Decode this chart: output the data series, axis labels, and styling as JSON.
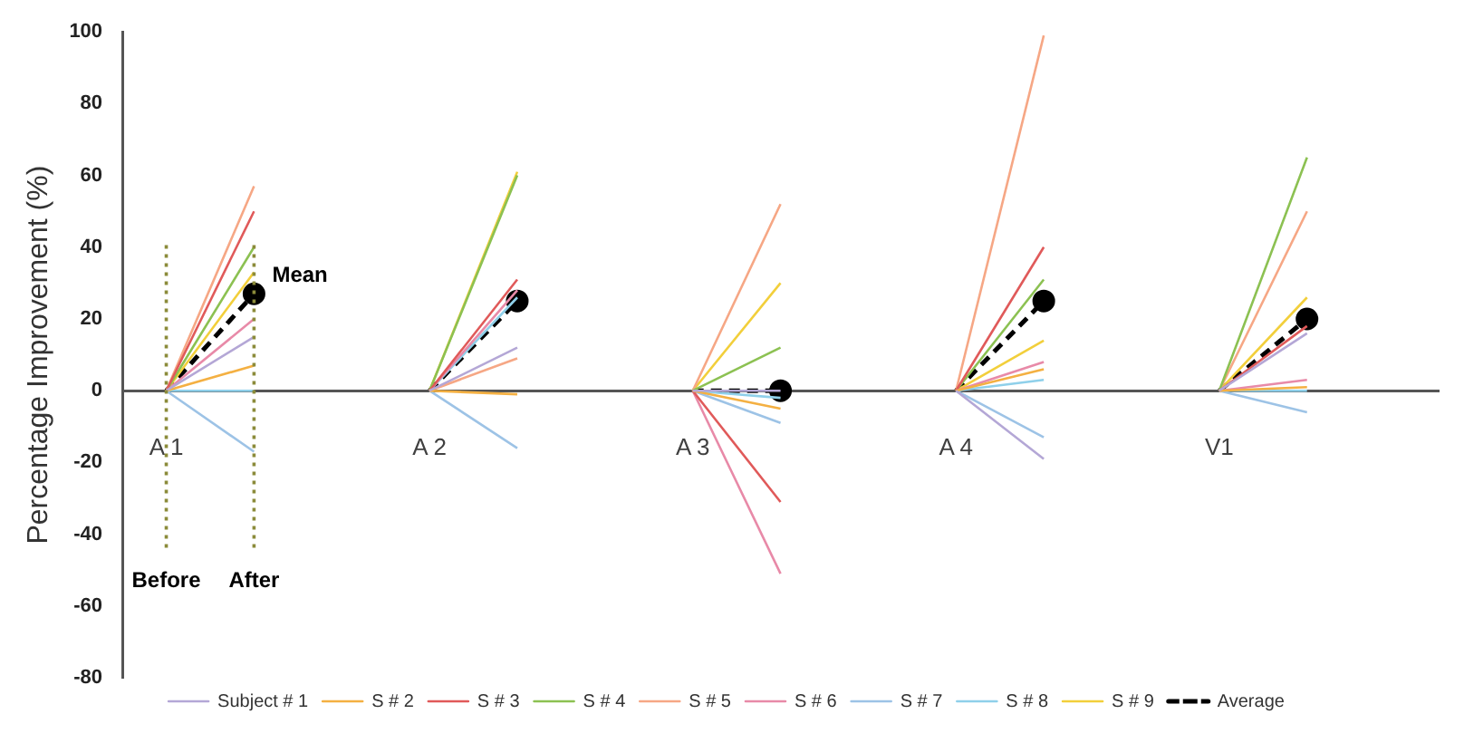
{
  "chart_data": {
    "type": "line",
    "ylabel": "Percentage Improvement (%)",
    "categories": [
      "A 1",
      null,
      null,
      "A 2",
      null,
      null,
      "A 3",
      null,
      null,
      "A 4",
      null,
      null,
      "V1",
      null,
      null
    ],
    "ylim": [
      -80,
      100
    ],
    "yticks": [
      -80,
      -60,
      -40,
      -20,
      0,
      20,
      40,
      60,
      80,
      100
    ],
    "grid": false,
    "legend": "bottom",
    "line_style": "solid",
    "series": [
      {
        "name": "Subject # 1",
        "color": "#b4a7d6",
        "values": [
          0,
          15,
          null,
          0,
          12,
          null,
          0,
          0,
          null,
          0,
          -19,
          null,
          0,
          16,
          null
        ]
      },
      {
        "name": "S # 2",
        "color": "#f4b042",
        "values": [
          0,
          7,
          null,
          0,
          -1,
          null,
          0,
          -5,
          null,
          0,
          6,
          null,
          0,
          1,
          null
        ]
      },
      {
        "name": "S # 3",
        "color": "#e05a5a",
        "values": [
          0,
          50,
          null,
          0,
          31,
          null,
          0,
          -31,
          null,
          0,
          40,
          null,
          0,
          18,
          null
        ]
      },
      {
        "name": "S # 4",
        "color": "#8cc152",
        "values": [
          0,
          40,
          null,
          0,
          60,
          null,
          0,
          12,
          null,
          0,
          31,
          null,
          0,
          65,
          null
        ]
      },
      {
        "name": "S # 5",
        "color": "#f6a785",
        "values": [
          0,
          57,
          null,
          0,
          9,
          null,
          0,
          52,
          null,
          0,
          99,
          null,
          0,
          50,
          null
        ]
      },
      {
        "name": "S # 6",
        "color": "#e88aa8",
        "values": [
          0,
          20,
          null,
          0,
          28,
          null,
          0,
          -51,
          null,
          0,
          8,
          null,
          0,
          3,
          null
        ]
      },
      {
        "name": "S # 7",
        "color": "#9dc3e6",
        "values": [
          0,
          -17,
          null,
          0,
          -16,
          null,
          0,
          -9,
          null,
          0,
          -13,
          null,
          0,
          -6,
          null
        ]
      },
      {
        "name": "S # 8",
        "color": "#8fd0ea",
        "values": [
          0,
          0,
          null,
          0,
          26,
          null,
          0,
          -2,
          null,
          0,
          3,
          null,
          0,
          0,
          null
        ]
      },
      {
        "name": "S # 9",
        "color": "#f2cf3b",
        "values": [
          0,
          33,
          null,
          0,
          61,
          null,
          0,
          30,
          null,
          0,
          14,
          null,
          0,
          26,
          null
        ]
      },
      {
        "name": "Average",
        "color": "#000000",
        "line_style": "dashed",
        "marker": "circle",
        "values": [
          0,
          27,
          null,
          0,
          25,
          null,
          0,
          0,
          null,
          0,
          25,
          null,
          0,
          20,
          null
        ]
      }
    ],
    "ref_lines": [
      {
        "axis": "x",
        "value": "A 1",
        "label": "Before",
        "color": "#8b8b3a",
        "line_style": "dotted"
      },
      {
        "axis": "x",
        "label": "After",
        "color": "#8b8b3a",
        "line_style": "dotted"
      }
    ],
    "annotations": [
      "Mean"
    ]
  }
}
